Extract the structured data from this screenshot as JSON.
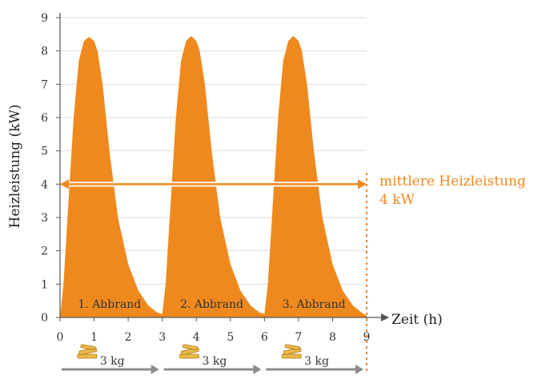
{
  "chart_data": {
    "type": "area",
    "title": "",
    "xlabel": "Zeit (h)",
    "ylabel": "Heizleistung (kW)",
    "xlim": [
      0,
      9
    ],
    "ylim": [
      0,
      9
    ],
    "x_ticks": [
      "0",
      "1",
      "2",
      "3",
      "4",
      "5",
      "6",
      "7",
      "8",
      "9"
    ],
    "y_ticks": [
      "0",
      "1",
      "2",
      "3",
      "4",
      "5",
      "6",
      "7",
      "8",
      "9"
    ],
    "grid": "horizontal",
    "series": [
      {
        "color": "#F0891D",
        "x": [
          0,
          0.1,
          0.25,
          0.4,
          0.55,
          0.7,
          0.85,
          1.0,
          1.1,
          1.25,
          1.45,
          1.7,
          2.0,
          2.3,
          2.6,
          2.85,
          3.0,
          3.0,
          3.1,
          3.25,
          3.4,
          3.55,
          3.7,
          3.85,
          4.0,
          4.1,
          4.25,
          4.45,
          4.7,
          5.0,
          5.3,
          5.6,
          5.85,
          6.0,
          6.0,
          6.1,
          6.25,
          6.4,
          6.55,
          6.7,
          6.85,
          7.0,
          7.1,
          7.25,
          7.45,
          7.7,
          8.0,
          8.3,
          8.6,
          8.85,
          9.0
        ],
        "y": [
          0,
          1.0,
          3.5,
          6.0,
          7.7,
          8.3,
          8.42,
          8.3,
          8.0,
          7.0,
          5.0,
          3.0,
          1.6,
          0.8,
          0.35,
          0.15,
          0.1,
          0.1,
          1.0,
          3.5,
          6.0,
          7.7,
          8.3,
          8.45,
          8.3,
          8.0,
          7.0,
          5.0,
          3.0,
          1.6,
          0.8,
          0.35,
          0.15,
          0.1,
          0.1,
          1.0,
          3.5,
          6.0,
          7.7,
          8.3,
          8.45,
          8.3,
          8.0,
          7.0,
          5.0,
          3.0,
          1.6,
          0.8,
          0.35,
          0.15,
          0.05
        ]
      }
    ],
    "average": {
      "value": 4,
      "label_line1": "mittlere Heizleistung",
      "label_line2": "4 kW",
      "color": "#F0891D"
    },
    "burns": [
      {
        "label": "1. Abbrand",
        "center": 1.5,
        "start": 0,
        "end": 3,
        "load": "3 kg"
      },
      {
        "label": "2. Abbrand",
        "center": 4.5,
        "start": 3,
        "end": 6,
        "load": "3 kg"
      },
      {
        "label": "3. Abbrand",
        "center": 7.5,
        "start": 6,
        "end": 9,
        "load": "3 kg"
      }
    ],
    "colors": {
      "fill": "#F0891D",
      "arrow": "#8C8C8C",
      "wood": "#E9B949",
      "grid": "#DDDDDD",
      "axis": "#555555"
    }
  }
}
